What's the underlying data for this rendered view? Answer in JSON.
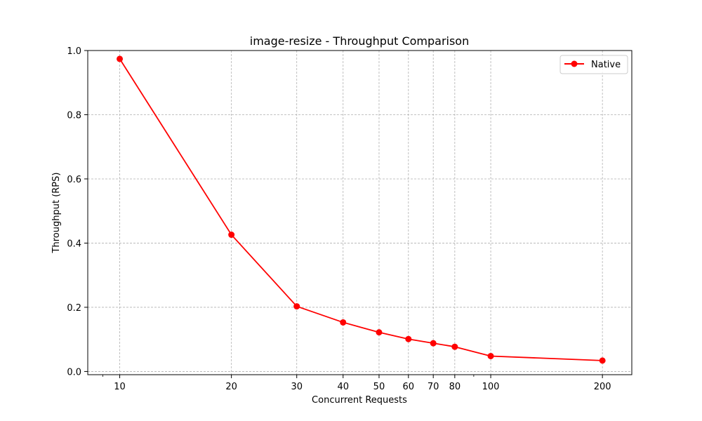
{
  "chart_data": {
    "type": "line",
    "title": "image-resize - Throughput Comparison",
    "xlabel": "Concurrent Requests",
    "ylabel": "Throughput (RPS)",
    "xscale": "log",
    "xlim": [
      8.2,
      240
    ],
    "ylim": [
      -0.01,
      1.0
    ],
    "xticks": [
      10,
      20,
      30,
      40,
      50,
      60,
      70,
      80,
      100,
      200
    ],
    "xtick_labels": [
      "10",
      "20",
      "30",
      "40",
      "50",
      "60",
      "70",
      "80",
      "100",
      "200"
    ],
    "yticks": [
      0.0,
      0.2,
      0.4,
      0.6,
      0.8,
      1.0
    ],
    "ytick_labels": [
      "0.0",
      "0.2",
      "0.4",
      "0.6",
      "0.8",
      "1.0"
    ],
    "grid": true,
    "legend_position": "top-right",
    "series": [
      {
        "name": "Native",
        "color": "#ff0000",
        "marker": "circle",
        "x": [
          10,
          20,
          30,
          40,
          50,
          60,
          70,
          80,
          100,
          200
        ],
        "y": [
          0.974,
          0.426,
          0.203,
          0.153,
          0.122,
          0.101,
          0.088,
          0.077,
          0.048,
          0.034
        ]
      }
    ]
  }
}
